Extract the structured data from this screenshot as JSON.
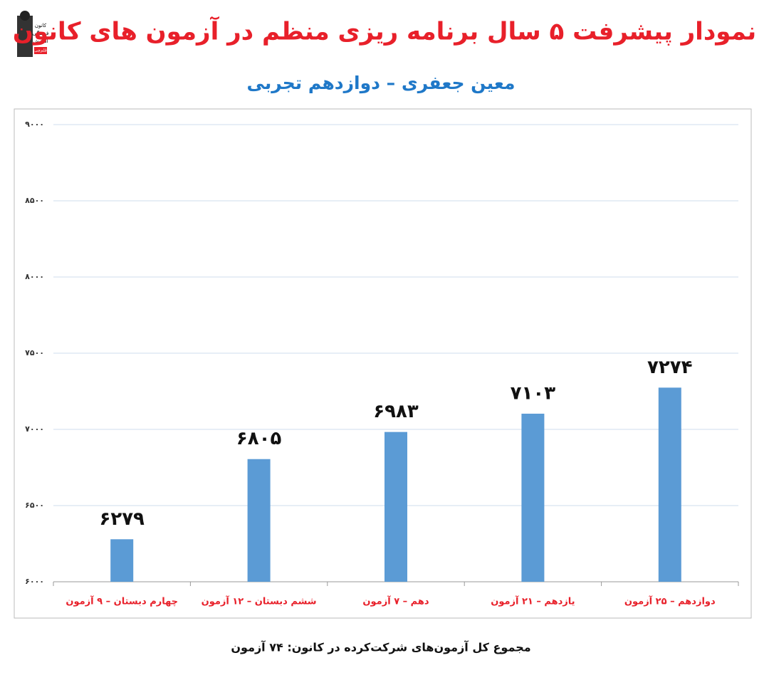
{
  "logo_text": [
    "کانون",
    "فرهنگی",
    "آموزش",
    "قلم‌چی"
  ],
  "chart_data": {
    "type": "bar",
    "title": "نمودار پیشرفت ۵ سال برنامه ریزی منظم در آزمون های کانون",
    "subtitle": "معین جعفری – دوازدهم تجربی",
    "categories": [
      "چهارم دبستان – ۹ آزمون",
      "ششم دبستان – ۱۲ آزمون",
      "دهم – ۷ آزمون",
      "یازدهم – ۲۱ آزمون",
      "دوازدهم – ۲۵ آزمون"
    ],
    "values": [
      6279,
      6805,
      6983,
      7103,
      7274
    ],
    "value_labels": [
      "۶۲۷۹",
      "۶۸۰۵",
      "۶۹۸۳",
      "۷۱۰۳",
      "۷۲۷۴"
    ],
    "color": "#5b9bd5",
    "ylim": [
      6000,
      9000
    ],
    "yticks": [
      {
        "value": 6000,
        "label": "۶۰۰۰"
      },
      {
        "value": 6500,
        "label": "۶۵۰۰"
      },
      {
        "value": 7000,
        "label": "۷۰۰۰"
      },
      {
        "value": 7500,
        "label": "۷۵۰۰"
      },
      {
        "value": 8000,
        "label": "۸۰۰۰"
      },
      {
        "value": 8500,
        "label": "۸۵۰۰"
      },
      {
        "value": 9000,
        "label": "۹۰۰۰"
      }
    ],
    "grid": true,
    "footnote": "مجموع کل آزمون‌های شرکت‌کرده در کانون:  ۷۴ آزمون"
  }
}
